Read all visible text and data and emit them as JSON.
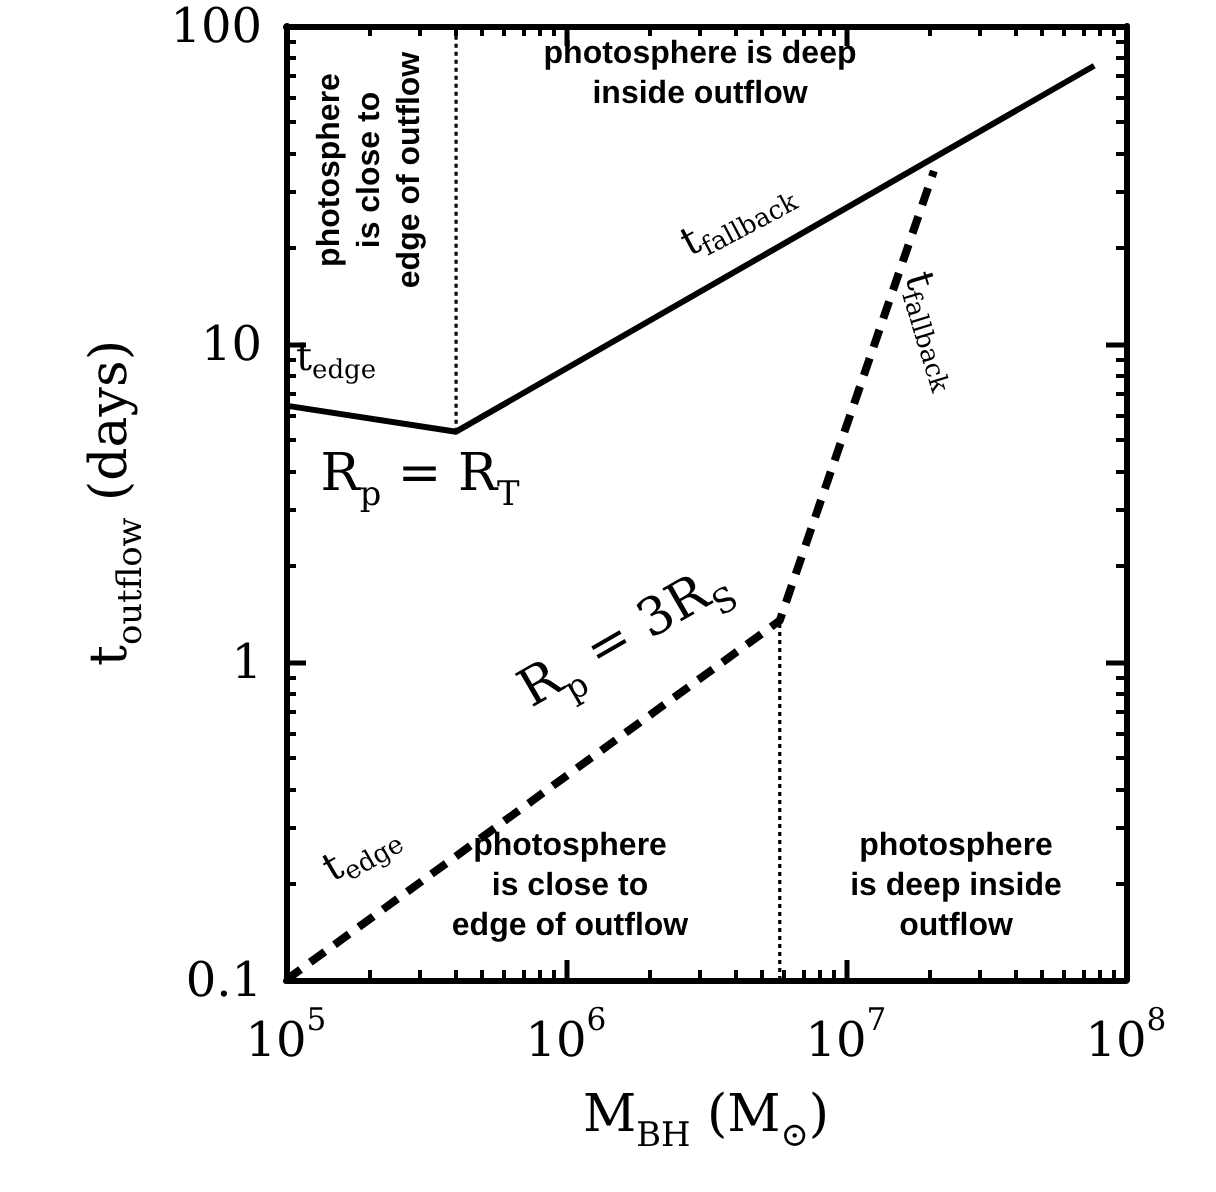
{
  "chart_data": {
    "type": "line",
    "xlabel": "M$_{BH}$ (M$_{⊙}$)",
    "ylabel": "t$_{outflow}$ (days)",
    "log": "xy",
    "grid": false,
    "marker": "none",
    "xlim": [
      100000,
      100000000
    ],
    "xticks": [
      {
        "value": 100000,
        "label": "10$^{5}$"
      },
      {
        "value": 1000000,
        "label": "10$^{6}$"
      },
      {
        "value": 10000000,
        "label": "10$^{7}$"
      },
      {
        "value": 100000000,
        "label": "10$^{8}$"
      }
    ],
    "ylim": [
      0.1,
      100
    ],
    "yticks": [
      0.1,
      1,
      10,
      100
    ],
    "series": [
      {
        "color": "#000000",
        "line_style": "solid",
        "x": [
          100000,
          405000,
          77000000
        ],
        "values": [
          6.4,
          5.3,
          75
        ]
      },
      {
        "color": "#000000",
        "line_style": "dashed",
        "x": [
          100000,
          5800000,
          20600000
        ],
        "values": [
          0.1,
          1.35,
          35
        ]
      },
      {
        "color": "#000000",
        "line_style": "dotted",
        "x": [
          405000,
          405000
        ],
        "values": [
          5.3,
          100
        ]
      },
      {
        "color": "#000000",
        "line_style": "dotted",
        "x": [
          5800000,
          5800000
        ],
        "values": [
          0.1,
          1.35
        ]
      }
    ],
    "annotations": [
      "t$_{edge}$",
      "R$_{p}$ = R$_{T}$",
      "t$_{fallback}$",
      "t$_{fallback}$",
      "t$_{edge}$",
      "R$_{p}$ = 3R$_{S}$",
      "photosphere\nis close to\nedge of outflow",
      "photosphere is deep\ninside outflow",
      "photosphere\nis close to\nedge of outflow",
      "photosphere\nis deep inside\noutflow"
    ]
  }
}
